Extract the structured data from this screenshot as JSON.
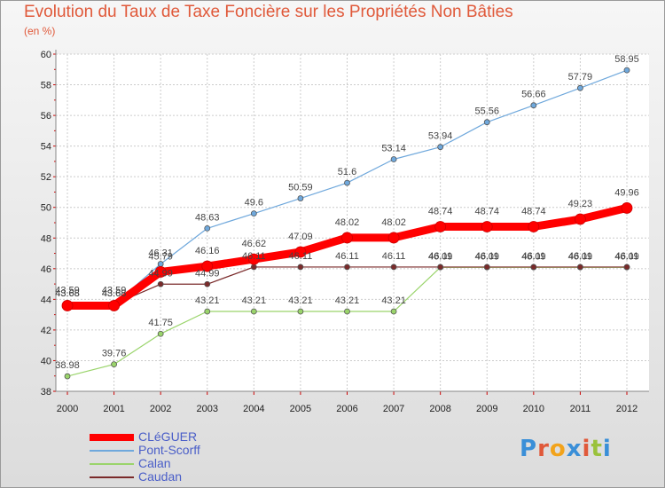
{
  "header": {
    "title": "Evolution du Taux de Taxe Foncière sur les Propriétés Non Bâties",
    "unit": "(en %)"
  },
  "chart_data": {
    "type": "line",
    "title": "Evolution du Taux de Taxe Foncière sur les Propriétés Non Bâties",
    "ylabel": "(en %)",
    "xlabel": "",
    "ylim": [
      38,
      60
    ],
    "yticks": [
      38,
      40,
      42,
      44,
      46,
      48,
      50,
      52,
      54,
      56,
      58,
      60
    ],
    "categories": [
      "2000",
      "2001",
      "2002",
      "2003",
      "2004",
      "2005",
      "2006",
      "2007",
      "2008",
      "2009",
      "2010",
      "2011",
      "2012"
    ],
    "series": [
      {
        "name": "CLéGUER",
        "color": "#ff0000",
        "values": [
          43.59,
          43.59,
          45.79,
          46.16,
          46.62,
          47.09,
          48.02,
          48.02,
          48.74,
          48.74,
          48.74,
          49.23,
          49.96
        ],
        "labels": [
          "43.59",
          "43.59",
          "45.79",
          "46.16",
          "46.62",
          "47.09",
          "48.02",
          "48.02",
          "48.74",
          "48.74",
          "48.74",
          "49.23",
          "49.96"
        ]
      },
      {
        "name": "Pont-Scorff",
        "color": "#6fa8dc",
        "values": [
          43.68,
          43.68,
          46.31,
          48.63,
          49.6,
          50.59,
          51.6,
          53.14,
          53.94,
          55.56,
          56.66,
          57.79,
          58.95
        ],
        "labels": [
          "43.68",
          "43.68",
          "46.31",
          "48.63",
          "49.6",
          "50.59",
          "51.6",
          "53.14",
          "53.94",
          "55.56",
          "56.66",
          "57.79",
          "58.95"
        ]
      },
      {
        "name": "Calan",
        "color": "#9ad46b",
        "values": [
          38.98,
          39.76,
          41.75,
          43.21,
          43.21,
          43.21,
          43.21,
          43.21,
          46.09,
          46.09,
          46.09,
          46.09,
          46.09
        ],
        "labels": [
          "38.98",
          "39.76",
          "41.75",
          "43.21",
          "43.21",
          "43.21",
          "43.21",
          "43.21",
          "46.09",
          "46.09",
          "46.09",
          "46.09",
          "46.09"
        ]
      },
      {
        "name": "Caudan",
        "color": "#7a2a2a",
        "values": [
          43.68,
          43.68,
          44.99,
          44.99,
          46.11,
          46.11,
          46.11,
          46.11,
          46.11,
          46.11,
          46.11,
          46.11,
          46.11
        ],
        "labels": [
          "43.68",
          "43.68",
          "44.99",
          "44.99",
          "46.11",
          "46.11",
          "46.11",
          "46.11",
          "46.11",
          "46.11",
          "46.11",
          "46.11",
          "46.11"
        ]
      }
    ],
    "legend": [
      {
        "label": "CLéGUER",
        "color": "#ff0000"
      },
      {
        "label": "Pont-Scorff",
        "color": "#6fa8dc"
      },
      {
        "label": "Calan",
        "color": "#9ad46b"
      },
      {
        "label": "Caudan",
        "color": "#7a2a2a"
      }
    ],
    "legend_position": "bottom-left"
  },
  "logo": {
    "text": "Proxiti",
    "letter_colors": [
      "#3a8fd8",
      "#e0593a",
      "#f2a31b",
      "#3a8fd8",
      "#e0593a",
      "#9ac23c",
      "#3a8fd8"
    ]
  }
}
